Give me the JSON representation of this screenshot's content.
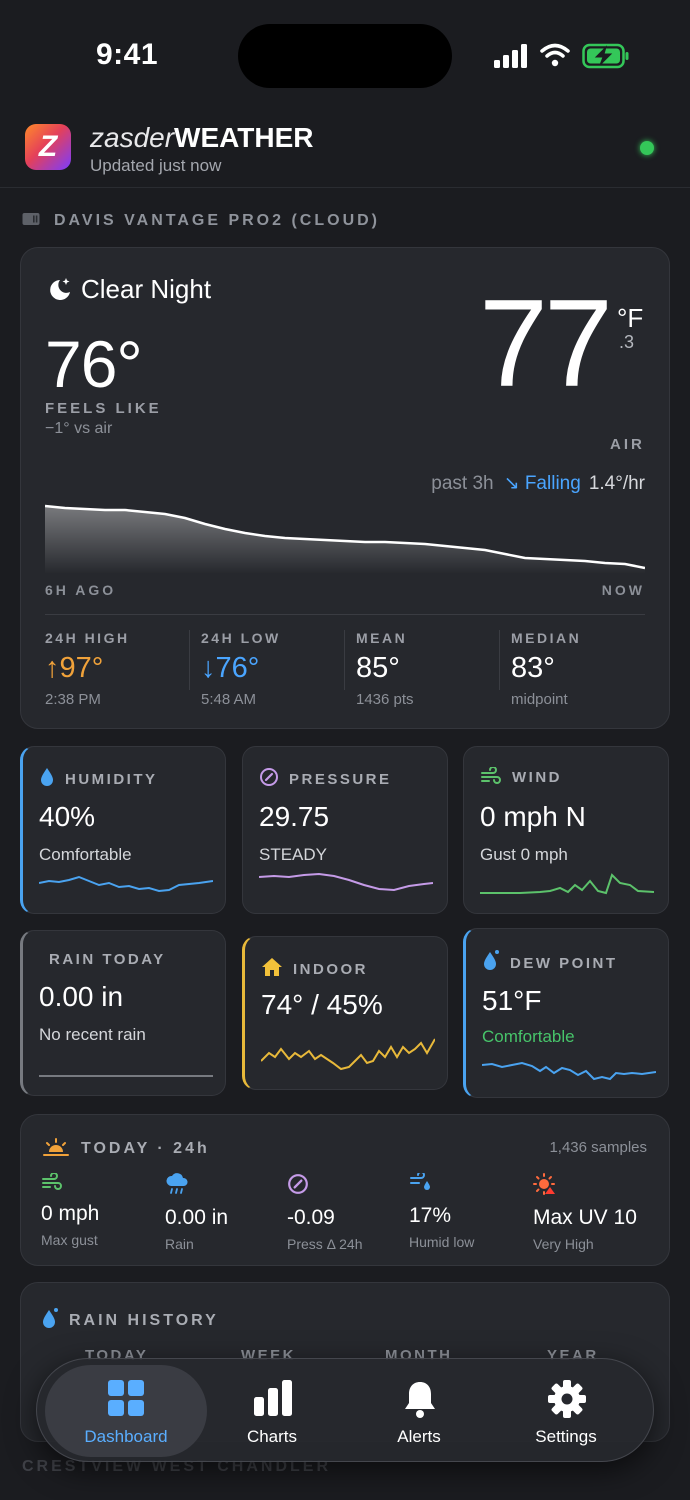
{
  "status_bar": {
    "time": "9:41"
  },
  "header": {
    "brand_light": "zasder",
    "brand_bold": "WEATHER",
    "updated": "Updated just now",
    "logo_letter": "Z"
  },
  "station": {
    "name": "DAVIS VANTAGE PRO2 (CLOUD)"
  },
  "hero": {
    "condition": "Clear Night",
    "feels_like": "76°",
    "feels_label": "FEELS LIKE",
    "feels_sub": "−1° vs air",
    "temp": "77",
    "unit": "°F",
    "temp_decimal": ".3",
    "air_label": "AIR",
    "trend_window": "past 3h",
    "trend_arrow": "↘",
    "trend_word": "Falling",
    "trend_rate": "1.4°/hr",
    "axis_left": "6H AGO",
    "axis_right": "NOW",
    "stats": [
      {
        "label": "24H HIGH",
        "value": "97°",
        "arrow": "↑",
        "sub": "2:38 PM"
      },
      {
        "label": "24H LOW",
        "value": "76°",
        "arrow": "↓",
        "sub": "5:48 AM"
      },
      {
        "label": "MEAN",
        "value": "85°",
        "sub": "1436 pts"
      },
      {
        "label": "MEDIAN",
        "value": "83°",
        "sub": "midpoint"
      }
    ]
  },
  "tiles": {
    "humidity": {
      "label": "HUMIDITY",
      "value": "40%",
      "sub": "Comfortable",
      "color": "#4aa3f0"
    },
    "pressure": {
      "label": "PRESSURE",
      "value": "29.75",
      "sub": "STEADY",
      "color": "#c59be8"
    },
    "wind": {
      "label": "WIND",
      "value": "0 mph N",
      "sub": "Gust 0 mph",
      "color": "#5cc26b"
    },
    "rain": {
      "label": "RAIN TODAY",
      "value": "0.00 in",
      "sub": "No recent rain",
      "color": "#777a80"
    },
    "indoor": {
      "label": "INDOOR",
      "value": "74° / 45%",
      "color": "#e8b93a"
    },
    "dew": {
      "label": "DEW POINT",
      "value": "51°F",
      "sub": "Comfortable",
      "color": "#4aa3f0",
      "sub_color": "#47c46a"
    }
  },
  "today": {
    "title": "TODAY · 24h",
    "samples": "1,436 samples",
    "items": [
      {
        "value": "0 mph",
        "sub": "Max gust",
        "icon": "wind-icon"
      },
      {
        "value": "0.00 in",
        "sub": "Rain",
        "icon": "rain-cloud-icon"
      },
      {
        "value": "-0.09",
        "sub": "Press Δ 24h",
        "icon": "gauge-icon"
      },
      {
        "value": "17%",
        "sub": "Humid low",
        "icon": "humidity-wind-icon"
      },
      {
        "value": "Max UV 10",
        "sub": "Very High",
        "icon": "uv-sun-icon"
      }
    ]
  },
  "rain_history": {
    "title": "RAIN HISTORY",
    "columns": [
      "TODAY",
      "WEEK",
      "MONTH",
      "YEAR"
    ]
  },
  "station2": {
    "name": "CRESTVIEW WEST CHANDLER"
  },
  "tabbar": {
    "tabs": [
      {
        "label": "Dashboard",
        "icon": "dashboard-grid-icon",
        "active": true
      },
      {
        "label": "Charts",
        "icon": "bar-chart-icon",
        "active": false
      },
      {
        "label": "Alerts",
        "icon": "bell-icon",
        "active": false
      },
      {
        "label": "Settings",
        "icon": "gear-icon",
        "active": false
      }
    ]
  }
}
